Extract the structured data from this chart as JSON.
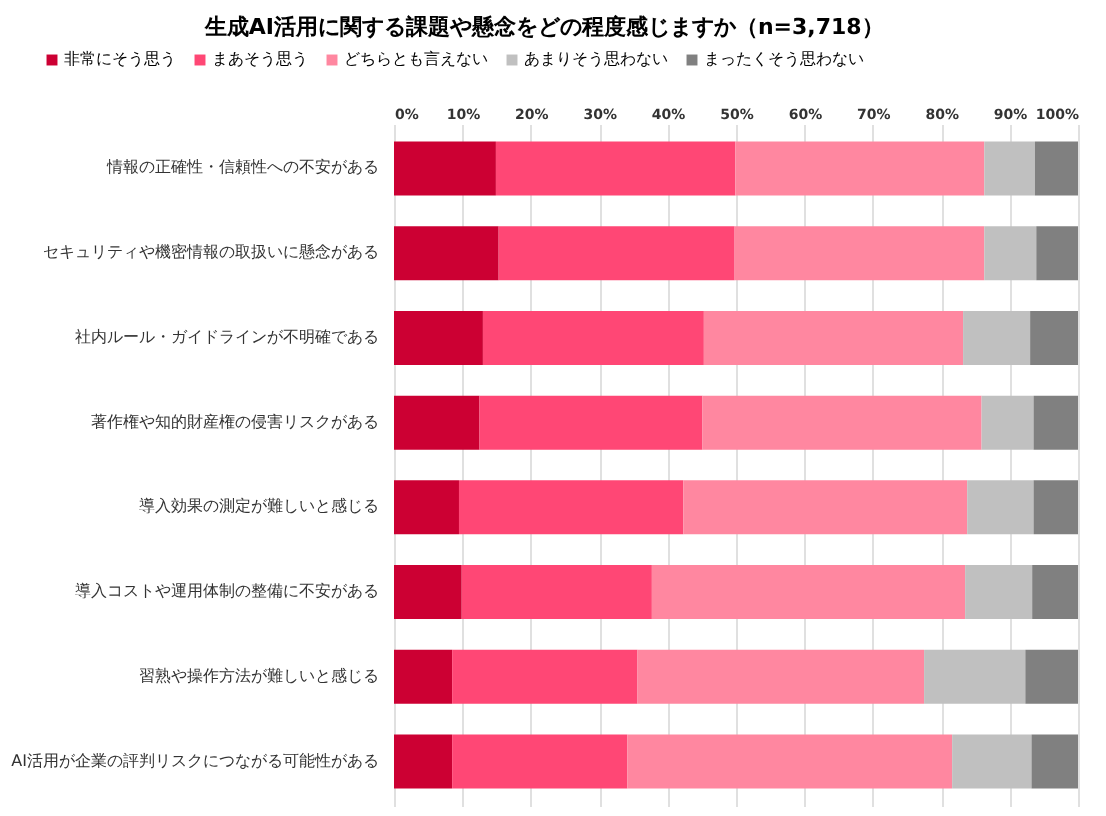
{
  "chart_data": {
    "type": "bar",
    "orientation": "horizontal",
    "stacked": true,
    "title": "生成AI活用に関する課題や懸念をどの程度感じますか（n=3,718）",
    "categories": [
      "情報の正確性・信頼性への不安がある",
      "セキュリティや機密情報の取扱いに懸念がある",
      "社内ルール・ガイドラインが不明確である",
      "著作権や知的財産権の侵害リスクがある",
      "導入効果の測定が難しいと感じる",
      "導入コストや運用体制の整備に不安がある",
      "習熟や操作方法が難しいと感じる",
      "AI活用が企業の評判リスクにつながる可能性がある"
    ],
    "series": [
      {
        "name": "非常にそう思う",
        "color": "#cc0033",
        "values": [
          14.9,
          15.3,
          13.0,
          12.5,
          9.5,
          9.9,
          8.5,
          8.5
        ]
      },
      {
        "name": "まあそう思う",
        "color": "#ff4775",
        "values": [
          35.0,
          34.5,
          32.3,
          32.6,
          32.8,
          27.8,
          27.1,
          25.6
        ]
      },
      {
        "name": "どちらとも言えない",
        "color": "#ff87a0",
        "values": [
          36.4,
          36.5,
          37.9,
          40.8,
          41.5,
          45.8,
          41.9,
          47.5
        ]
      },
      {
        "name": "あまりそう思わない",
        "color": "#c0c0c0",
        "values": [
          7.4,
          7.6,
          9.8,
          7.6,
          9.7,
          9.8,
          14.8,
          11.6
        ]
      },
      {
        "name": "まったくそう思わない",
        "color": "#808080",
        "values": [
          6.3,
          6.1,
          7.0,
          6.5,
          6.5,
          6.7,
          7.7,
          6.8
        ]
      }
    ],
    "xlim": [
      0,
      100
    ],
    "xticks": [
      {
        "value": 0,
        "label": "0%"
      },
      {
        "value": 10,
        "label": "10%"
      },
      {
        "value": 20,
        "label": "20%"
      },
      {
        "value": 30,
        "label": "30%"
      },
      {
        "value": 40,
        "label": "40%"
      },
      {
        "value": 50,
        "label": "50%"
      },
      {
        "value": 60,
        "label": "60%"
      },
      {
        "value": 70,
        "label": "70%"
      },
      {
        "value": 80,
        "label": "80%"
      },
      {
        "value": 90,
        "label": "90%"
      },
      {
        "value": 100,
        "label": "100%"
      }
    ],
    "grid": "x",
    "legend": "top left"
  }
}
